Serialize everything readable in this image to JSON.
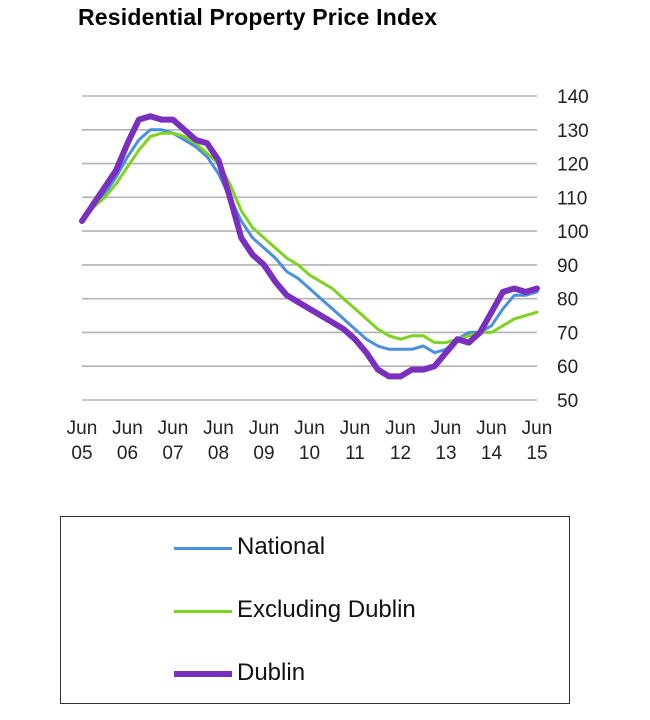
{
  "chart_data": {
    "type": "line",
    "title": "Residential Property Price Index",
    "xlabel": "",
    "ylabel": "",
    "ylim": [
      50,
      140
    ],
    "yticks": [
      50,
      60,
      70,
      80,
      90,
      100,
      110,
      120,
      130,
      140
    ],
    "grid": true,
    "x_ticks": [
      {
        "top": "Jun",
        "bottom": "05",
        "x": 2005.5
      },
      {
        "top": "Jun",
        "bottom": "06",
        "x": 2006.5
      },
      {
        "top": "Jun",
        "bottom": "07",
        "x": 2007.5
      },
      {
        "top": "Jun",
        "bottom": "08",
        "x": 2008.5
      },
      {
        "top": "Jun",
        "bottom": "09",
        "x": 2009.5
      },
      {
        "top": "Jun",
        "bottom": "10",
        "x": 2010.5
      },
      {
        "top": "Jun",
        "bottom": "11",
        "x": 2011.5
      },
      {
        "top": "Jun",
        "bottom": "12",
        "x": 2012.5
      },
      {
        "top": "Jun",
        "bottom": "13",
        "x": 2013.5
      },
      {
        "top": "Jun",
        "bottom": "14",
        "x": 2014.5
      },
      {
        "top": "Jun",
        "bottom": "15",
        "x": 2015.5
      }
    ],
    "x": [
      2005.5,
      2005.75,
      2006.0,
      2006.25,
      2006.5,
      2006.75,
      2007.0,
      2007.25,
      2007.5,
      2007.75,
      2008.0,
      2008.25,
      2008.5,
      2008.75,
      2009.0,
      2009.25,
      2009.5,
      2009.75,
      2010.0,
      2010.25,
      2010.5,
      2010.75,
      2011.0,
      2011.25,
      2011.5,
      2011.75,
      2012.0,
      2012.25,
      2012.5,
      2012.75,
      2013.0,
      2013.25,
      2013.5,
      2013.75,
      2014.0,
      2014.25,
      2014.5,
      2014.75,
      2015.0,
      2015.25,
      2015.5
    ],
    "series": [
      {
        "name": "National",
        "color": "#4a90e2",
        "width": 3,
        "values": [
          103,
          108,
          111,
          116,
          122,
          127,
          130,
          130,
          129,
          127,
          125,
          122,
          117,
          110,
          103,
          98,
          95,
          92,
          88,
          86,
          83,
          80,
          77,
          74,
          71,
          68,
          66,
          65,
          65,
          65,
          66,
          64,
          65,
          68,
          70,
          70,
          72,
          77,
          81,
          81,
          82
        ]
      },
      {
        "name": "Excluding Dublin",
        "color": "#7ed321",
        "width": 3,
        "values": [
          103,
          107,
          110,
          114,
          119,
          124,
          128,
          129,
          129,
          128,
          126,
          123,
          120,
          114,
          106,
          101,
          98,
          95,
          92,
          90,
          87,
          85,
          83,
          80,
          77,
          74,
          71,
          69,
          68,
          69,
          69,
          67,
          67,
          68,
          69,
          70,
          70,
          72,
          74,
          75,
          76
        ]
      },
      {
        "name": "Dublin",
        "color": "#7a2fbe",
        "width": 6,
        "values": [
          103,
          108,
          113,
          118,
          126,
          133,
          134,
          133,
          133,
          130,
          127,
          126,
          121,
          110,
          98,
          93,
          90,
          85,
          81,
          79,
          77,
          75,
          73,
          71,
          68,
          64,
          59,
          57,
          57,
          59,
          59,
          60,
          64,
          68,
          67,
          70,
          76,
          82,
          83,
          82,
          83
        ]
      }
    ]
  }
}
